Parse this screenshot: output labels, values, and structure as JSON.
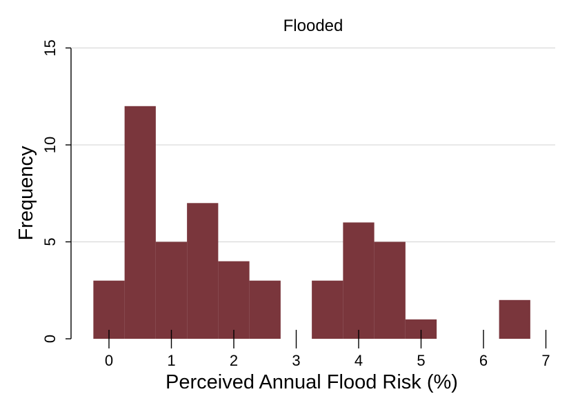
{
  "chart_data": {
    "type": "bar",
    "title": "Flooded",
    "xlabel": "Perceived Annual Flood Risk (%)",
    "ylabel": "Frequency",
    "xlim": [
      -0.25,
      7
    ],
    "ylim": [
      0,
      15
    ],
    "x_ticks": [
      "0",
      "1",
      "2",
      "3",
      "4",
      "5",
      "6",
      "7"
    ],
    "y_ticks": [
      "0",
      "5",
      "10",
      "15"
    ],
    "grid": true,
    "bar_color": "#7a363c",
    "bin_width": 0.5,
    "bins": [
      {
        "x0": -0.25,
        "x1": 0.25,
        "value": 3
      },
      {
        "x0": 0.25,
        "x1": 0.75,
        "value": 12
      },
      {
        "x0": 0.75,
        "x1": 1.25,
        "value": 5
      },
      {
        "x0": 1.25,
        "x1": 1.75,
        "value": 7
      },
      {
        "x0": 1.75,
        "x1": 2.25,
        "value": 4
      },
      {
        "x0": 2.25,
        "x1": 2.75,
        "value": 3
      },
      {
        "x0": 2.75,
        "x1": 3.25,
        "value": 0
      },
      {
        "x0": 3.25,
        "x1": 3.75,
        "value": 3
      },
      {
        "x0": 3.75,
        "x1": 4.25,
        "value": 6
      },
      {
        "x0": 4.25,
        "x1": 4.75,
        "value": 5
      },
      {
        "x0": 4.75,
        "x1": 5.25,
        "value": 1
      },
      {
        "x0": 5.25,
        "x1": 5.75,
        "value": 0
      },
      {
        "x0": 5.75,
        "x1": 6.25,
        "value": 0
      },
      {
        "x0": 6.25,
        "x1": 6.75,
        "value": 2
      }
    ]
  }
}
